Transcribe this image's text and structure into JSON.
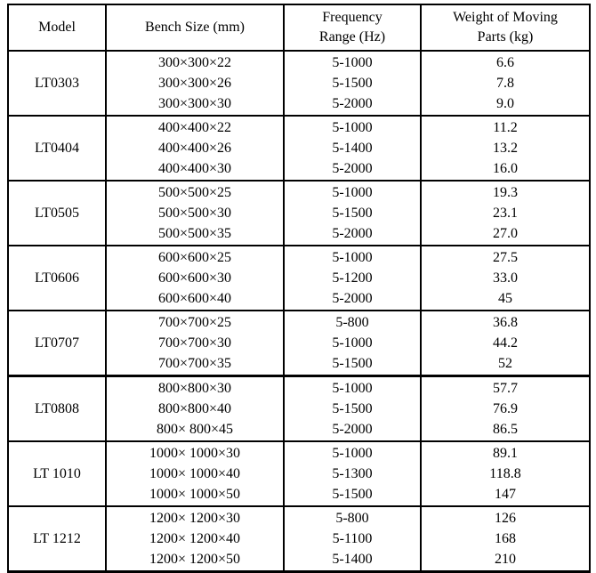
{
  "table": {
    "headers": [
      "Model",
      "Bench Size (mm)",
      "Frequency\nRange (Hz)",
      "Weight of Moving\nParts (kg)"
    ],
    "groups": [
      {
        "model": "LT0303",
        "rows": [
          {
            "bench": "300×300×22",
            "freq": "5-1000",
            "weight": "6.6"
          },
          {
            "bench": "300×300×26",
            "freq": "5-1500",
            "weight": "7.8"
          },
          {
            "bench": "300×300×30",
            "freq": "5-2000",
            "weight": "9.0"
          }
        ]
      },
      {
        "model": "LT0404",
        "rows": [
          {
            "bench": "400×400×22",
            "freq": "5-1000",
            "weight": "11.2"
          },
          {
            "bench": "400×400×26",
            "freq": "5-1400",
            "weight": "13.2"
          },
          {
            "bench": "400×400×30",
            "freq": "5-2000",
            "weight": "16.0"
          }
        ]
      },
      {
        "model": "LT0505",
        "rows": [
          {
            "bench": "500×500×25",
            "freq": "5-1000",
            "weight": "19.3"
          },
          {
            "bench": "500×500×30",
            "freq": "5-1500",
            "weight": "23.1"
          },
          {
            "bench": "500×500×35",
            "freq": "5-2000",
            "weight": "27.0"
          }
        ]
      },
      {
        "model": "LT0606",
        "rows": [
          {
            "bench": "600×600×25",
            "freq": "5-1000",
            "weight": "27.5"
          },
          {
            "bench": "600×600×30",
            "freq": "5-1200",
            "weight": "33.0"
          },
          {
            "bench": "600×600×40",
            "freq": "5-2000",
            "weight": "45"
          }
        ]
      },
      {
        "model": "LT0707",
        "rows": [
          {
            "bench": "700×700×25",
            "freq": "5-800",
            "weight": "36.8"
          },
          {
            "bench": "700×700×30",
            "freq": "5-1000",
            "weight": "44.2"
          },
          {
            "bench": "700×700×35",
            "freq": "5-1500",
            "weight": "52"
          }
        ]
      },
      {
        "model": "LT0808",
        "rows": [
          {
            "bench": "800×800×30",
            "freq": "5-1000",
            "weight": "57.7"
          },
          {
            "bench": "800×800×40",
            "freq": "5-1500",
            "weight": "76.9"
          },
          {
            "bench": "800× 800×45",
            "freq": "5-2000",
            "weight": "86.5"
          }
        ]
      },
      {
        "model": "LT 1010",
        "rows": [
          {
            "bench": "1000× 1000×30",
            "freq": "5-1000",
            "weight": "89.1"
          },
          {
            "bench": "1000× 1000×40",
            "freq": "5-1300",
            "weight": "118.8"
          },
          {
            "bench": "1000× 1000×50",
            "freq": "5-1500",
            "weight": "147"
          }
        ]
      },
      {
        "model": "LT 1212",
        "rows": [
          {
            "bench": "1200× 1200×30",
            "freq": "5-800",
            "weight": "126"
          },
          {
            "bench": "1200× 1200×40",
            "freq": "5-1100",
            "weight": "168"
          },
          {
            "bench": "1200× 1200×50",
            "freq": "5-1400",
            "weight": "210"
          }
        ]
      }
    ]
  }
}
